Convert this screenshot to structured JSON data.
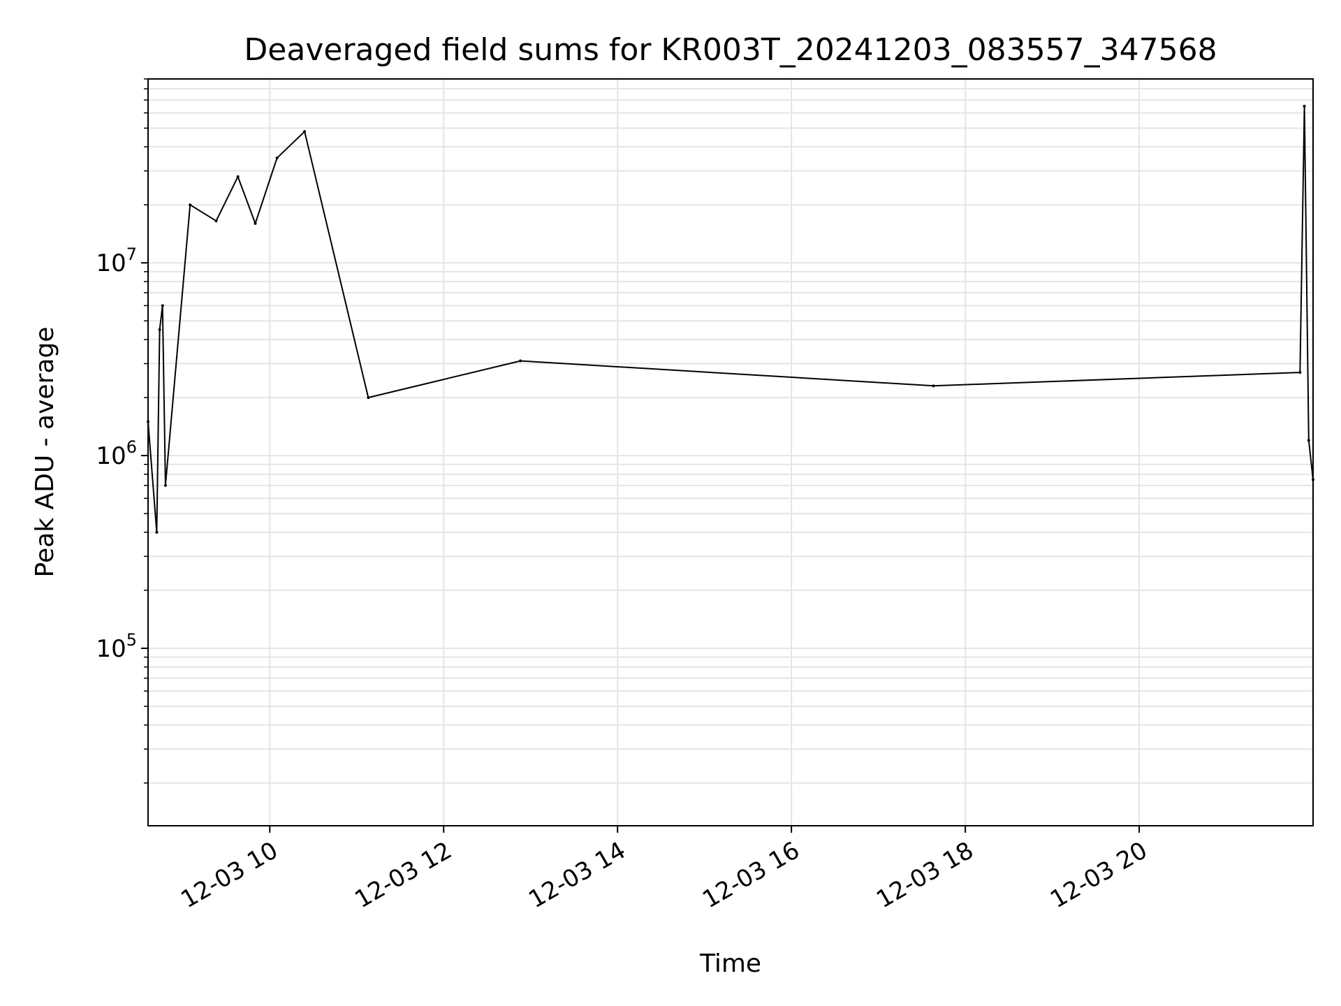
{
  "chart_data": {
    "type": "line",
    "title": "Deaveraged field sums for KR003T_20241203_083557_347568",
    "xlabel": "Time",
    "ylabel": "Peak ADU - average",
    "yscale": "log",
    "xlim": [
      "2024-12-03 08:36",
      "2024-12-03 22:00"
    ],
    "ylim": [
      12000,
      90000000
    ],
    "grid": true,
    "line_color": "#000000",
    "x_tick_labels": [
      {
        "x": "2024-12-03 10:00",
        "label": "12-03 10"
      },
      {
        "x": "2024-12-03 12:00",
        "label": "12-03 12"
      },
      {
        "x": "2024-12-03 14:00",
        "label": "12-03 14"
      },
      {
        "x": "2024-12-03 16:00",
        "label": "12-03 16"
      },
      {
        "x": "2024-12-03 18:00",
        "label": "12-03 18"
      },
      {
        "x": "2024-12-03 20:00",
        "label": "12-03 20"
      }
    ],
    "y_tick_labels": [
      {
        "value": 100000,
        "base": "10",
        "exponent": "5"
      },
      {
        "value": 1000000,
        "base": "10",
        "exponent": "6"
      },
      {
        "value": 10000000,
        "base": "10",
        "exponent": "7"
      }
    ],
    "series": [
      {
        "x": [
          "2024-12-03 08:36",
          "2024-12-03 08:42",
          "2024-12-03 08:44",
          "2024-12-03 08:46",
          "2024-12-03 08:48",
          "2024-12-03 09:05",
          "2024-12-03 09:23",
          "2024-12-03 09:38",
          "2024-12-03 09:50",
          "2024-12-03 10:05",
          "2024-12-03 10:24",
          "2024-12-03 11:08",
          "2024-12-03 12:53",
          "2024-12-03 17:38",
          "2024-12-03 21:51",
          "2024-12-03 21:54",
          "2024-12-03 21:57",
          "2024-12-03 22:00"
        ],
        "y": [
          1500000,
          400000,
          4500000,
          6000000,
          700000,
          20000000,
          16500000,
          28000000,
          16000000,
          35000000,
          48000000,
          2000000,
          3100000,
          2300000,
          2700000,
          65000000,
          1200000,
          750000
        ]
      }
    ]
  }
}
